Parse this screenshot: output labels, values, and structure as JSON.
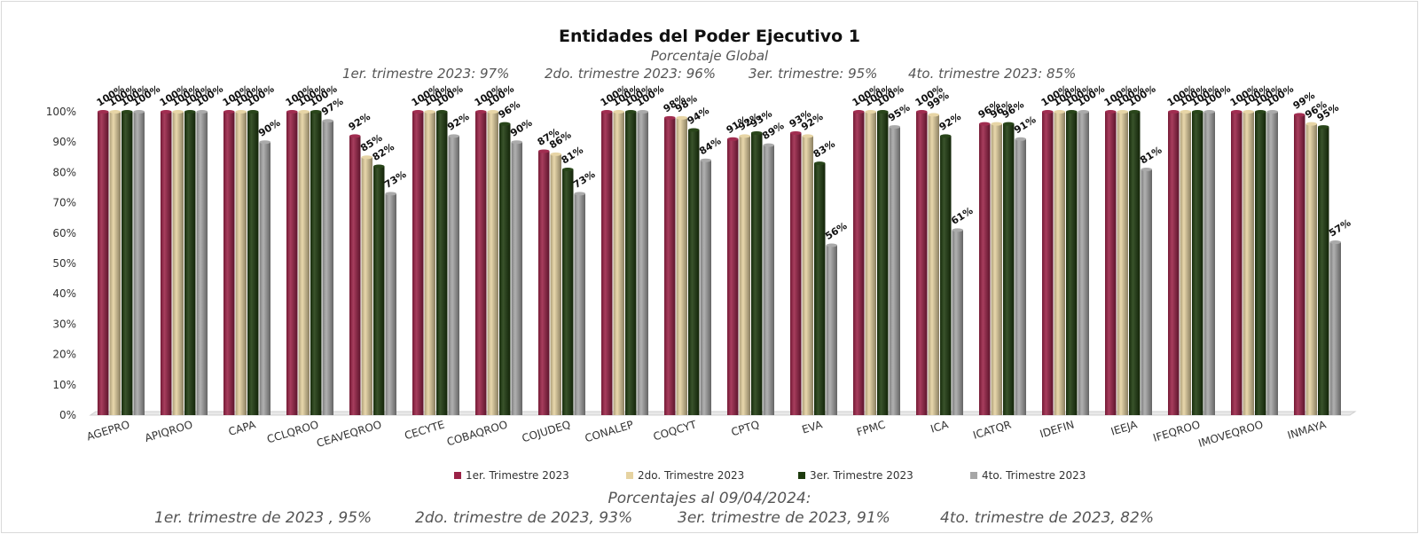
{
  "chart_data": {
    "type": "bar",
    "title": "Entidades del Poder Ejecutivo 1",
    "subtitle": "Porcentaje Global",
    "quarter_summary": [
      "1er. trimestre 2023: 97%",
      "2do. trimestre 2023: 96%",
      "3er. trimestre: 95%",
      "4to. trimestre 2023: 85%"
    ],
    "categories": [
      "AGEPRO",
      "APIQROO",
      "CAPA",
      "CCLQROO",
      "CEAVEQROO",
      "CECYTE",
      "COBAQROO",
      "COJUDEQ",
      "CONALEP",
      "COQCYT",
      "CPTQ",
      "EVA",
      "FPMC",
      "ICA",
      "ICATQR",
      "IDEFIN",
      "IEEJA",
      "IFEQROO",
      "IMOVEQROO",
      "INMAYA"
    ],
    "series": [
      {
        "name": "1er. Trimestre 2023",
        "color": "#9b2247",
        "values": [
          100,
          100,
          100,
          100,
          92,
          100,
          100,
          87,
          100,
          98,
          91,
          93,
          100,
          100,
          96,
          100,
          100,
          100,
          100,
          99
        ]
      },
      {
        "name": "2do. Trimestre 2023",
        "color": "#e6d3a1",
        "values": [
          100,
          100,
          100,
          100,
          85,
          100,
          100,
          86,
          100,
          98,
          92,
          92,
          100,
          99,
          96,
          100,
          100,
          100,
          100,
          96
        ]
      },
      {
        "name": "3er. Trimestre 2023",
        "color": "#1e3b0e",
        "values": [
          100,
          100,
          100,
          100,
          82,
          100,
          96,
          81,
          100,
          94,
          93,
          83,
          100,
          92,
          96,
          100,
          100,
          100,
          100,
          95
        ]
      },
      {
        "name": "4to. Trimestre 2023",
        "color": "#a6a6a6",
        "values": [
          100,
          100,
          90,
          97,
          73,
          92,
          90,
          73,
          100,
          84,
          89,
          56,
          95,
          61,
          91,
          100,
          81,
          100,
          100,
          57
        ]
      }
    ],
    "yticks": [
      "0%",
      "10%",
      "20%",
      "30%",
      "40%",
      "50%",
      "60%",
      "70%",
      "80%",
      "90%",
      "100%"
    ],
    "ylim": [
      0,
      100
    ],
    "legend_position": "bottom",
    "footnote_title": "Porcentajes al 09/04/2024:",
    "footnote_values": [
      "1er. trimestre de 2023 , 95%",
      "2do. trimestre de 2023, 93%",
      "3er. trimestre de 2023, 91%",
      "4to. trimestre de 2023, 82%"
    ]
  }
}
